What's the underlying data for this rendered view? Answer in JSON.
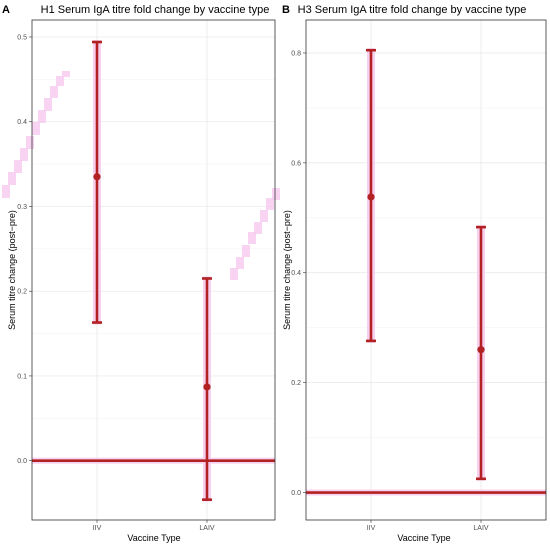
{
  "colors": {
    "mark": "#b22222",
    "highlight": "#f7c9ef",
    "grid": "#e6e6e6",
    "background": "#ffffff"
  },
  "chart_data": [
    {
      "panel": "A",
      "type": "scatter",
      "title": "H1 Serum IgA titre fold change by vaccine type",
      "xlabel": "Vaccine Type",
      "ylabel": "Serum titre change (post−pre)",
      "categories": [
        "IIV",
        "LAIV"
      ],
      "values": [
        0.335,
        0.087
      ],
      "lower": [
        0.163,
        -0.046
      ],
      "upper": [
        0.494,
        0.215
      ],
      "reference_line": 0.0,
      "ylim": [
        -0.07,
        0.52
      ],
      "yticks": [
        0.0,
        0.1,
        0.2,
        0.3,
        0.4,
        0.5
      ],
      "ytick_labels": [
        "0.0",
        "0.1",
        "0.2",
        "0.3",
        "0.4",
        "0.5"
      ],
      "grid": true
    },
    {
      "panel": "B",
      "type": "scatter",
      "title": "H3 Serum IgA titre fold change by vaccine type",
      "xlabel": "Vaccine Type",
      "ylabel": "Serum titre change (post−pre)",
      "categories": [
        "IIV",
        "LAIV"
      ],
      "values": [
        0.538,
        0.26
      ],
      "lower": [
        0.276,
        0.025
      ],
      "upper": [
        0.805,
        0.483
      ],
      "reference_line": 0.0,
      "ylim": [
        -0.05,
        0.86
      ],
      "yticks": [
        0.0,
        0.2,
        0.4,
        0.6,
        0.8
      ],
      "ytick_labels": [
        "0.0",
        "0.2",
        "0.4",
        "0.6",
        "0.8"
      ],
      "grid": true
    }
  ]
}
